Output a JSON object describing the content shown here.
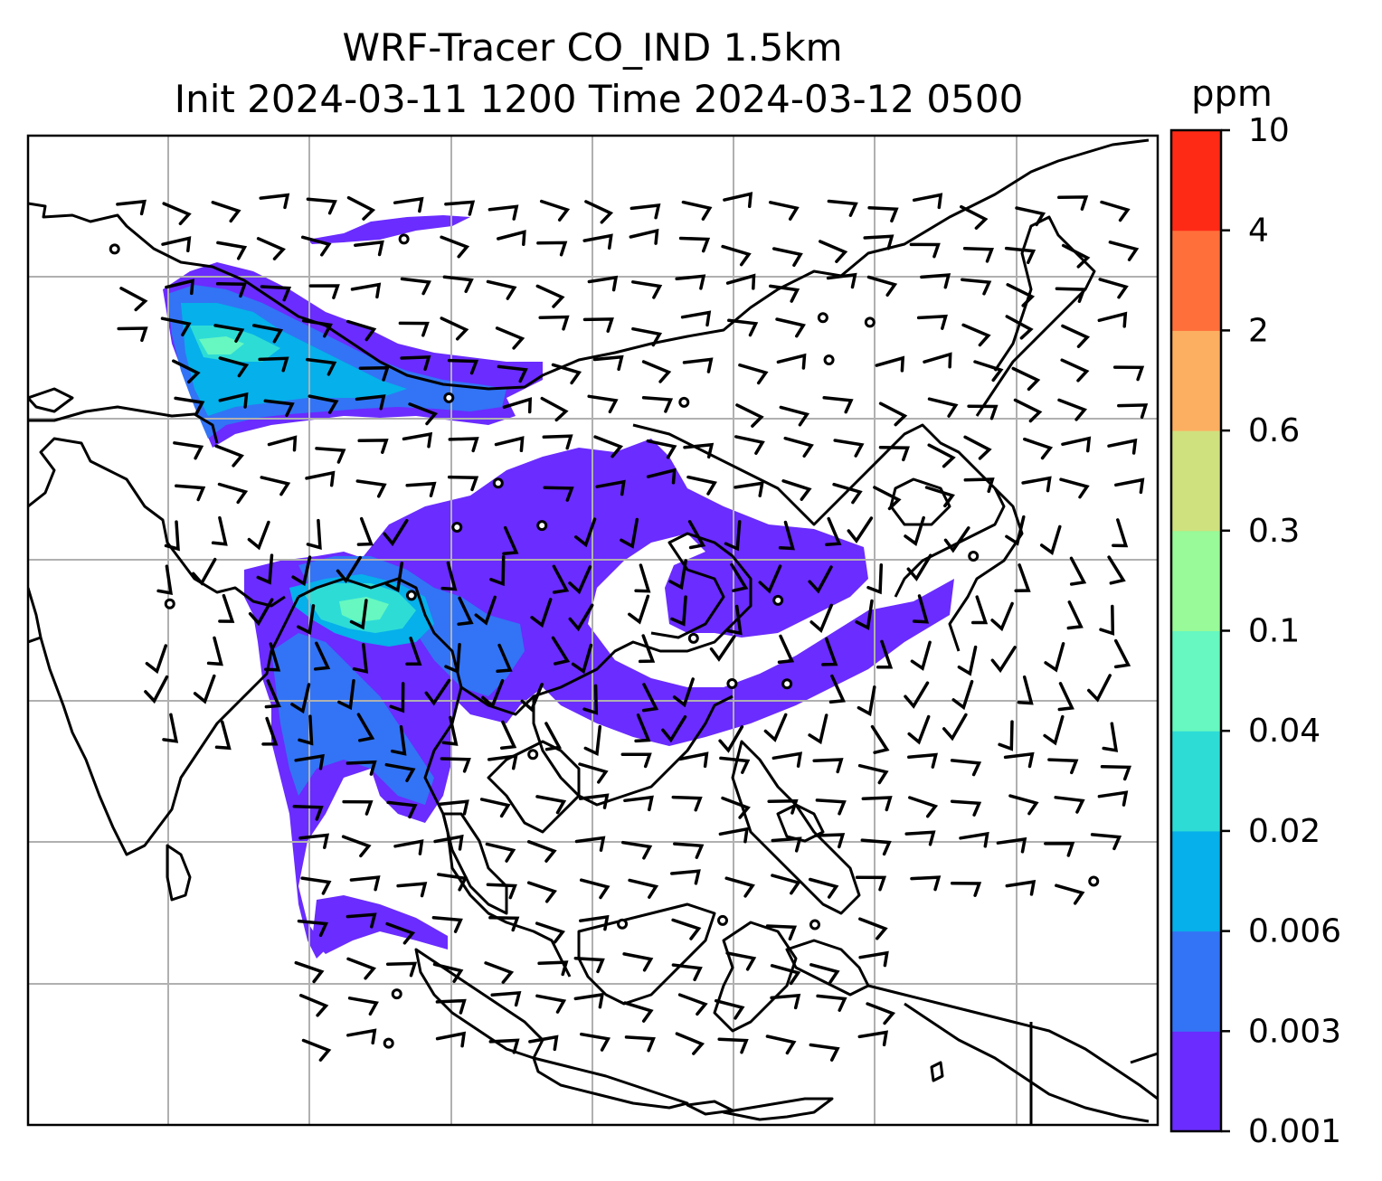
{
  "figure": {
    "title_line1": "WRF-Tracer CO_IND 1.5km",
    "title_line2": "Init 2024-03-11 1200 Time 2024-03-12 0500"
  },
  "colorbar": {
    "unit": "ppm",
    "levels": [
      "0.001",
      "0.003",
      "0.006",
      "0.02",
      "0.04",
      "0.1",
      "0.3",
      "0.6",
      "2",
      "4",
      "10"
    ],
    "colors": [
      "#6a2cff",
      "#3274f5",
      "#06b0ea",
      "#2edcd6",
      "#66f8c0",
      "#98fa98",
      "#cfe17f",
      "#fdaf61",
      "#ff6f3a",
      "#ff2a16"
    ]
  },
  "map": {
    "background": "#ffffff",
    "gridline_color": "#b0b0b0",
    "coastline_color": "#000000",
    "wind_barb_color": "#000000"
  }
}
